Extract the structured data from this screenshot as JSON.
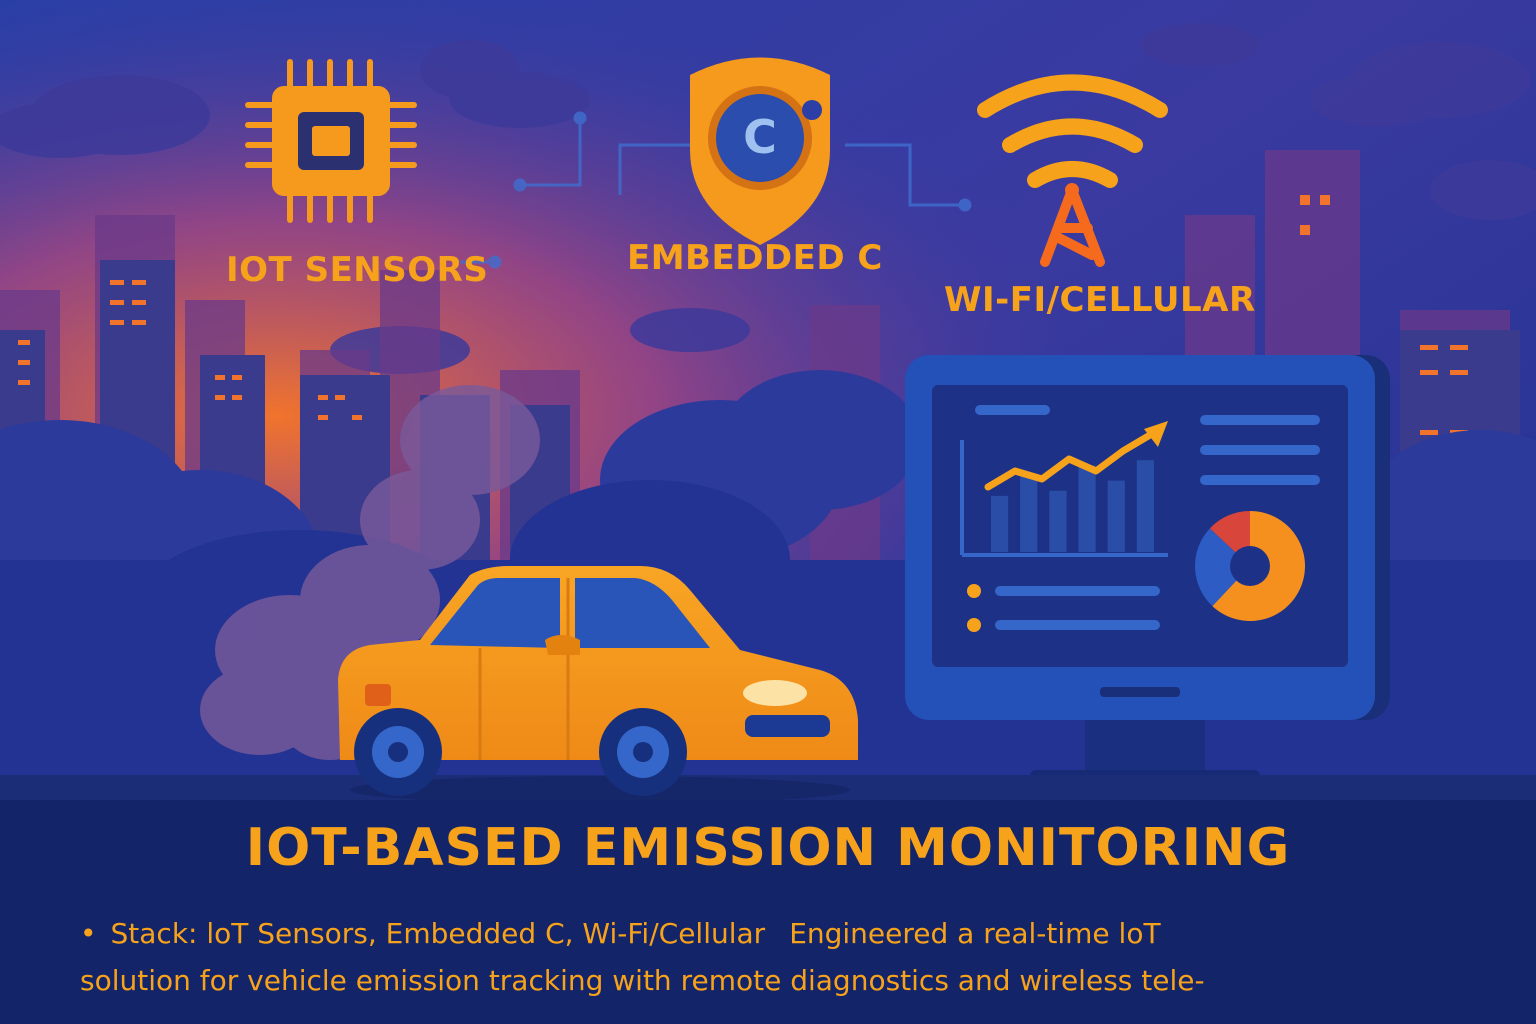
{
  "colors": {
    "sky_top": "#1d3a9e",
    "sky_glow": "#e8672a",
    "building_dark": "#2a2f7a",
    "building_mid": "#3a3b8c",
    "window": "#f2742c",
    "accent": "#f7a21b",
    "car_body": "#f59a1c",
    "car_window": "#2a55b8",
    "monitor_frame": "#1f3f9a",
    "monitor_screen": "#1d3286",
    "bottom_panel": "#132468",
    "text": "#f7a21b"
  },
  "icons": {
    "chip": "microchip-icon",
    "shield": "shield-c-icon",
    "wifi": "wifi-antenna-icon",
    "car": "car-icon",
    "monitor": "monitor-dashboard-icon"
  },
  "features": {
    "iot": "IOT SENSORS",
    "embedded": "EMBEDDED C",
    "wireless": "WI-FI/CELLULAR"
  },
  "shield_letter": "C",
  "title": "IOT-BASED EMISSION MONITORING",
  "description": {
    "bullet": "•",
    "line1_a": "Stack: loT Sensors, Embedded C, Wi-Fi/Cellular",
    "line1_b": "Engineered a real-time loT",
    "line2": "solution for vehicle emission tracking with remote diagnostics and wireless tele-"
  },
  "dashboard": {
    "line_values": [
      0.35,
      0.55,
      0.45,
      0.7,
      0.55,
      0.8,
      1.0
    ],
    "bar_values": [
      0.55,
      0.75,
      0.6,
      0.85,
      0.7,
      0.9
    ],
    "donut_slices": [
      {
        "fraction": 0.62,
        "color": "#f5901e"
      },
      {
        "fraction": 0.25,
        "color": "#2d5cc4"
      },
      {
        "fraction": 0.13,
        "color": "#d8453a"
      }
    ]
  }
}
